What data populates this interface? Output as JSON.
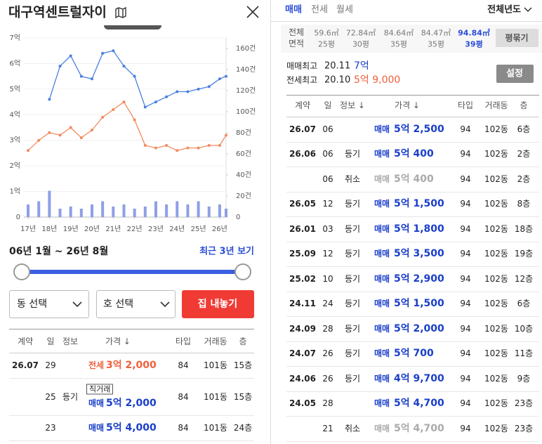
{
  "header": {
    "title": "대구역센트럴자이"
  },
  "chart_data": {
    "type": "line",
    "x": [
      17,
      17.5,
      18,
      18.5,
      19,
      19.5,
      20,
      20.5,
      21,
      21.5,
      22,
      22.5,
      23,
      23.5,
      24,
      24.5,
      25,
      25.5,
      26,
      26.3
    ],
    "series": [
      {
        "color": "#4a7fe0",
        "values": [
          null,
          null,
          4.6,
          5.9,
          6.3,
          5.5,
          5.4,
          6.4,
          6.5,
          5.9,
          5.5,
          4.3,
          4.5,
          4.7,
          4.9,
          4.9,
          5.0,
          5.1,
          5.4,
          5.5
        ]
      },
      {
        "color": "#f28a5e",
        "values": [
          2.6,
          3.0,
          3.3,
          3.2,
          3.5,
          3.1,
          3.4,
          3.9,
          4.2,
          4.5,
          3.8,
          2.8,
          2.7,
          2.8,
          2.6,
          2.7,
          2.7,
          2.8,
          2.8,
          3.2
        ]
      },
      {
        "type": "bar",
        "axis": "y2",
        "color": "#8e9fe6",
        "values": [
          12,
          15,
          25,
          8,
          10,
          8,
          12,
          15,
          10,
          12,
          8,
          10,
          15,
          12,
          15,
          12,
          15,
          10,
          12,
          8
        ]
      }
    ],
    "xlim": [
      16.8,
      26.3
    ],
    "xticks": [
      {
        "value": 17,
        "label": "17년"
      },
      {
        "value": 18,
        "label": "18년"
      },
      {
        "value": 19,
        "label": "19년"
      },
      {
        "value": 20,
        "label": "20년"
      },
      {
        "value": 21,
        "label": "21년"
      },
      {
        "value": 22,
        "label": "22년"
      },
      {
        "value": 23,
        "label": "23년"
      },
      {
        "value": 24,
        "label": "24년"
      },
      {
        "value": 25,
        "label": "25년"
      },
      {
        "value": 26,
        "label": "26년"
      }
    ],
    "ylim": [
      0,
      7
    ],
    "yticks": [
      0,
      {
        "value": 1,
        "label": "1억"
      },
      {
        "value": 2,
        "label": "2억"
      },
      {
        "value": 3,
        "label": "3억"
      },
      {
        "value": 4,
        "label": "4억"
      },
      {
        "value": 5,
        "label": "5억"
      },
      {
        "value": 6,
        "label": "6억"
      },
      {
        "value": 7,
        "label": "7억"
      }
    ],
    "y2lim": [
      0,
      170
    ],
    "y2ticks": [
      0,
      {
        "value": 20,
        "label": "20건"
      },
      {
        "value": 40,
        "label": "40건"
      },
      {
        "value": 60,
        "label": "60건"
      },
      {
        "value": 80,
        "label": "80건"
      },
      {
        "value": 100,
        "label": "100건"
      },
      {
        "value": 120,
        "label": "120건"
      },
      {
        "value": 140,
        "label": "140건"
      },
      {
        "value": 160,
        "label": "160건"
      }
    ],
    "grid": true
  },
  "period": {
    "range": "06년 1월 ~ 26년 8월",
    "recent": "최근 3년 보기"
  },
  "filters": {
    "dong": "동 선택",
    "ho": "호 선택",
    "button": "집 내놓기"
  },
  "left_table": {
    "columns": [
      "계약",
      "일",
      "정보",
      "가격 ↓",
      "타입",
      "거래동",
      "층"
    ],
    "rows": [
      {
        "date": "26.07",
        "day": "29",
        "kind": "전세",
        "price": "3억 2,000",
        "type": "84",
        "dong": "101동",
        "floor": "15층",
        "color": "#f0603c"
      },
      {
        "day": "25",
        "info": "등기",
        "badge": "직거래",
        "kind": "매매",
        "price": "5억 2,000",
        "type": "84",
        "dong": "101동",
        "floor": "15층",
        "color": "#1a3ec9"
      },
      {
        "day": "23",
        "kind": "매매",
        "price": "5억 4,000",
        "type": "84",
        "dong": "101동",
        "floor": "24층",
        "color": "#1a3ec9"
      }
    ]
  },
  "right": {
    "tabs": [
      "매매",
      "전세",
      "월세"
    ],
    "active_tab": 0,
    "year": "전체년도",
    "area_label": [
      "전체",
      "면적"
    ],
    "areas": [
      {
        "sqm": "59.6㎡",
        "pyeong": "25평"
      },
      {
        "sqm": "72.84㎡",
        "pyeong": "30평"
      },
      {
        "sqm": "84.64㎡",
        "pyeong": "35평"
      },
      {
        "sqm": "84.47㎡",
        "pyeong": "35평"
      },
      {
        "sqm": "94.84㎡",
        "pyeong": "39평"
      }
    ],
    "selected_area": 4,
    "group_button": "평묶기",
    "highs": [
      {
        "label": "매매최고",
        "date": "20.11",
        "price": "7억",
        "color": "#1a3ec9"
      },
      {
        "label": "전세최고",
        "date": "20.10",
        "price": "5억 9,000",
        "color": "#f0603c"
      }
    ],
    "settings": "설정",
    "table": {
      "columns": [
        "계약",
        "일",
        "정보 ↓",
        "가격 ↓",
        "타입",
        "거래동",
        "층"
      ],
      "rows": [
        {
          "date": "26.07",
          "day": "06",
          "kind": "매매",
          "price": "5억 2,500",
          "type": "94",
          "dong": "102동",
          "floor": "6층",
          "color": "#1a3ec9"
        },
        {
          "date": "26.06",
          "day": "06",
          "info": "등기",
          "kind": "매매",
          "price": "5억 400",
          "type": "94",
          "dong": "102동",
          "floor": "2층",
          "color": "#1a3ec9"
        },
        {
          "day": "06",
          "info": "취소",
          "kind": "매매",
          "price": "5억 400",
          "type": "94",
          "dong": "102동",
          "floor": "2층",
          "color": "#aaaaaa"
        },
        {
          "date": "26.05",
          "day": "12",
          "info": "등기",
          "kind": "매매",
          "price": "5억 1,500",
          "type": "94",
          "dong": "102동",
          "floor": "8층",
          "color": "#1a3ec9"
        },
        {
          "date": "26.01",
          "day": "03",
          "info": "등기",
          "kind": "매매",
          "price": "5억 1,800",
          "type": "94",
          "dong": "102동",
          "floor": "18층",
          "color": "#1a3ec9"
        },
        {
          "date": "25.09",
          "day": "12",
          "info": "등기",
          "kind": "매매",
          "price": "5억 3,500",
          "type": "94",
          "dong": "102동",
          "floor": "19층",
          "color": "#1a3ec9"
        },
        {
          "date": "25.02",
          "day": "10",
          "info": "등기",
          "kind": "매매",
          "price": "5억 2,900",
          "type": "94",
          "dong": "102동",
          "floor": "12층",
          "color": "#1a3ec9"
        },
        {
          "date": "24.11",
          "day": "24",
          "info": "등기",
          "kind": "매매",
          "price": "5억 1,500",
          "type": "94",
          "dong": "102동",
          "floor": "6층",
          "color": "#1a3ec9"
        },
        {
          "date": "24.09",
          "day": "28",
          "info": "등기",
          "kind": "매매",
          "price": "5억 2,000",
          "type": "94",
          "dong": "102동",
          "floor": "10층",
          "color": "#1a3ec9"
        },
        {
          "date": "24.07",
          "day": "26",
          "info": "등기",
          "kind": "매매",
          "price": "5억 700",
          "type": "94",
          "dong": "102동",
          "floor": "11층",
          "color": "#1a3ec9"
        },
        {
          "date": "24.06",
          "day": "26",
          "info": "등기",
          "kind": "매매",
          "price": "4억 9,700",
          "type": "94",
          "dong": "102동",
          "floor": "9층",
          "color": "#1a3ec9"
        },
        {
          "date": "24.05",
          "day": "28",
          "kind": "매매",
          "price": "5억 4,700",
          "type": "94",
          "dong": "102동",
          "floor": "23층",
          "color": "#1a3ec9"
        },
        {
          "day": "21",
          "info": "취소",
          "kind": "매매",
          "price": "5억 4,700",
          "type": "94",
          "dong": "102동",
          "floor": "23층",
          "color": "#aaaaaa"
        }
      ]
    }
  }
}
